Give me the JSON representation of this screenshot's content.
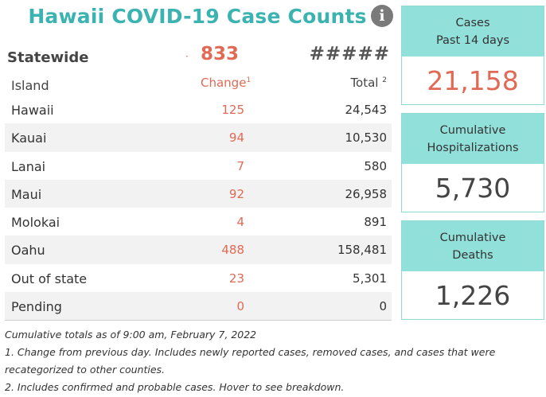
{
  "title": "Hawaii COVID-19 Case Counts",
  "info_icon": "info-icon",
  "statewide": {
    "label": "Statewide",
    "change": "833",
    "total": "#####"
  },
  "table": {
    "headers": {
      "island": "Island",
      "change": "Change",
      "change_sup": "1",
      "total": "Total",
      "total_sup": "2"
    },
    "rows": [
      {
        "name": "Hawaii",
        "change": "125",
        "total": "24,543"
      },
      {
        "name": "Kauai",
        "change": "94",
        "total": "10,530"
      },
      {
        "name": "Lanai",
        "change": "7",
        "total": "580"
      },
      {
        "name": "Maui",
        "change": "92",
        "total": "26,958"
      },
      {
        "name": "Molokai",
        "change": "4",
        "total": "891"
      },
      {
        "name": "Oahu",
        "change": "488",
        "total": "158,481"
      },
      {
        "name": "Out of state",
        "change": "23",
        "total": "5,301"
      },
      {
        "name": "Pending",
        "change": "0",
        "total": "0"
      }
    ]
  },
  "cards": [
    {
      "line1": "Cases",
      "line2": "Past 14 days",
      "value": "21,158"
    },
    {
      "line1": "Cumulative",
      "line2": "Hospitalizations",
      "value": "5,730"
    },
    {
      "line1": "Cumulative",
      "line2": "Deaths",
      "value": "1,226"
    }
  ],
  "footnotes": {
    "asof": "Cumulative totals as of 9:00 am, February 7, 2022",
    "note1a": "1. Change from previous day. Includes newly reported cases, removed cases, and cases that were",
    "note1b": "recategorized to other counties.",
    "note2": "2. Includes confirmed and probable cases. Hover to see breakdown."
  },
  "colors": {
    "accent_teal": "#3bb3b0",
    "card_header": "#92e0da",
    "change_red": "#e06a55"
  }
}
